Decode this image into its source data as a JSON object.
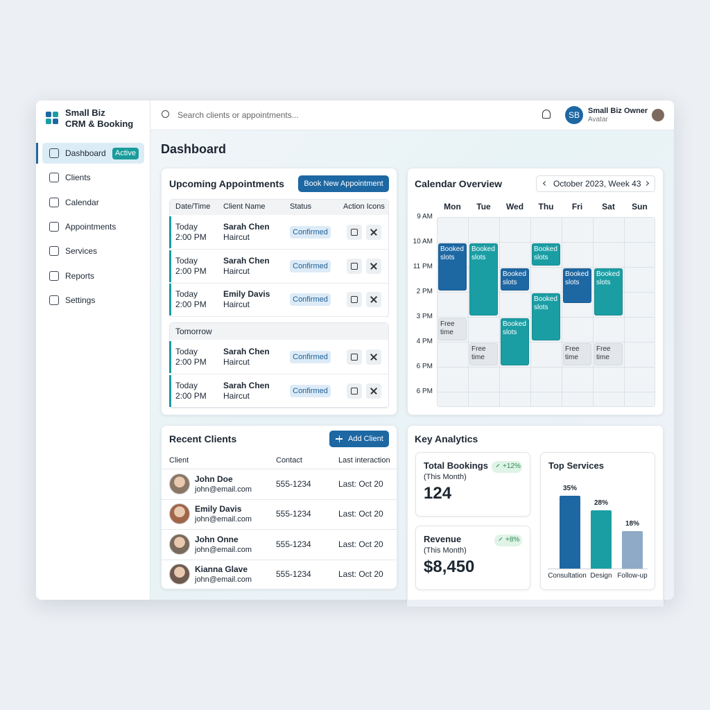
{
  "sidebar": {
    "brand": [
      "Small Biz",
      "CRM & Booking"
    ],
    "nav": [
      {
        "label": "Dashboard",
        "badge": "Active"
      },
      {
        "label": "Clients"
      },
      {
        "label": "Calendar"
      },
      {
        "label": "Appointments"
      },
      {
        "label": "Services"
      },
      {
        "label": "Reports"
      },
      {
        "label": "Settings"
      }
    ]
  },
  "header": {
    "search_placeholder": "Search clients or appointments...",
    "initials": "SB",
    "user_name": "Small Biz Owner",
    "user_caption": "Avatar"
  },
  "page_title": "Dashboard",
  "appointments": {
    "title": "Upcoming Appointments",
    "button": "Book New Appointment",
    "columns": [
      "Date/Time",
      "Client Name",
      "Status",
      "Action Icons"
    ],
    "rows": [
      {
        "day": "Today",
        "time": "2:00 PM",
        "client": "Sarah Chen",
        "service": "Haircut",
        "status": "Confirmed"
      },
      {
        "day": "Today",
        "time": "2:00 PM",
        "client": "Sarah Chen",
        "service": "Haircut",
        "status": "Confirmed"
      },
      {
        "day": "Today",
        "time": "2:00 PM",
        "client": "Emily Davis",
        "service": "Haircut",
        "status": "Confirmed"
      }
    ],
    "group_label": "Tomorrow",
    "group_rows": [
      {
        "day": "Today",
        "time": "2:00 PM",
        "client": "Sarah Chen",
        "service": "Haircut",
        "status": "Confirmed"
      },
      {
        "day": "Today",
        "time": "2:00 PM",
        "client": "Sarah Chen",
        "service": "Haircut",
        "status": "Confirmed"
      }
    ]
  },
  "calendar": {
    "title": "Calendar Overview",
    "period": "October 2023, Week 43",
    "days": [
      "Mon",
      "Tue",
      "Wed",
      "Thu",
      "Fri",
      "Sat",
      "Sun"
    ],
    "times": [
      "9 AM",
      "10 AM",
      "11 PM",
      "2 PM",
      "3 PM",
      "4 PM",
      "6 PM",
      "6 PM"
    ],
    "events": [
      {
        "label": "Booked slots",
        "day": 0,
        "slot": 1,
        "slots": 2,
        "color": "#1d67a3"
      },
      {
        "label": "Booked slots",
        "day": 1,
        "slot": 1,
        "slots": 3,
        "color": "#1a9ea4"
      },
      {
        "label": "Booked slots",
        "day": 2,
        "slot": 2,
        "slots": 1,
        "color": "#1d67a3"
      },
      {
        "label": "Booked slots",
        "day": 2,
        "slot": 4,
        "slots": 2,
        "color": "#1a9ea4"
      },
      {
        "label": "Booked slots",
        "day": 3,
        "slot": 1,
        "slots": 1,
        "color": "#1a9ea4"
      },
      {
        "label": "Booked slots",
        "day": 3,
        "slot": 3,
        "slots": 2,
        "color": "#1a9ea4"
      },
      {
        "label": "Booked slots",
        "day": 4,
        "slot": 2,
        "slots": 1.5,
        "color": "#1d67a3"
      },
      {
        "label": "Booked slots",
        "day": 5,
        "slot": 2,
        "slots": 2,
        "color": "#1a9ea4"
      },
      {
        "label": "Free time",
        "day": 0,
        "slot": 4,
        "slots": 1,
        "color": "#e3e7eb"
      },
      {
        "label": "Free time",
        "day": 1,
        "slot": 5,
        "slots": 1,
        "color": "#e3e7eb"
      },
      {
        "label": "Free time",
        "day": 4,
        "slot": 5,
        "slots": 1,
        "color": "#e3e7eb"
      },
      {
        "label": "Free time",
        "day": 5,
        "slot": 5,
        "slots": 1,
        "color": "#e3e7eb"
      }
    ]
  },
  "recent_clients": {
    "title": "Recent Clients",
    "button": "Add Client",
    "columns": [
      "Client",
      "Contact",
      "Last interaction"
    ],
    "rows": [
      {
        "name": "John Doe",
        "email": "john@email.com",
        "phone": "555-1234",
        "last": "Last: Oct 20"
      },
      {
        "name": "Emily Davis",
        "email": "john@email.com",
        "phone": "555-1234",
        "last": "Last: Oct 20"
      },
      {
        "name": "John Onne",
        "email": "john@email.com",
        "phone": "555-1234",
        "last": "Last: Oct 20"
      },
      {
        "name": "Kianna Glave",
        "email": "john@email.com",
        "phone": "555-1234",
        "last": "Last: Oct 20"
      }
    ]
  },
  "analytics": {
    "title": "Key Analytics",
    "cards": [
      {
        "title": "Total Bookings",
        "caption": "(This Month)",
        "value": "124",
        "change": "+12%"
      },
      {
        "title": "Revenue",
        "caption": "(This Month)",
        "value": "$8,450",
        "change": "+8%"
      }
    ],
    "top_services": {
      "title": "Top Services",
      "categories": [
        "Consultation",
        "Design",
        "Follow-up"
      ],
      "values": [
        35,
        28,
        18
      ],
      "value_labels": [
        "35%",
        "28%",
        "18%"
      ],
      "colors": [
        "#1d67a3",
        "#1a9ea4",
        "#8eaac6"
      ]
    }
  }
}
